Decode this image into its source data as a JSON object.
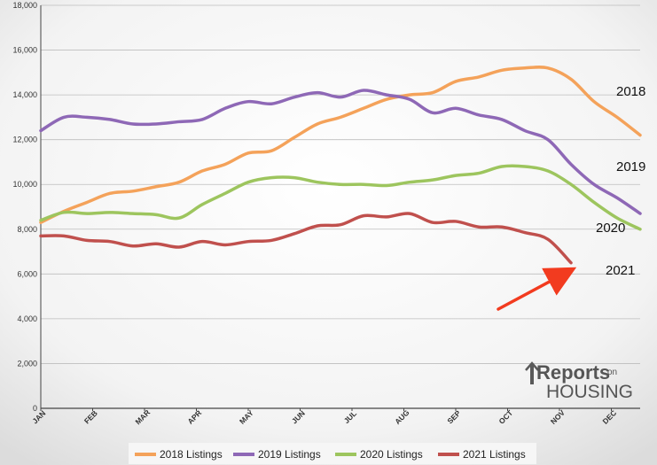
{
  "chart_data": {
    "type": "line",
    "title": "",
    "xlabel": "",
    "ylabel": "",
    "ylim": [
      0,
      18000
    ],
    "y_ticks": [
      "0",
      "2,000",
      "4,000",
      "6,000",
      "8,000",
      "10,000",
      "12,000",
      "14,000",
      "16,000",
      "18,000"
    ],
    "x_tick_labels": [
      "JAN",
      "FEB",
      "MAR",
      "APR",
      "MAY",
      "JUN",
      "JUL",
      "AUG",
      "SEP",
      "OCT",
      "NOV",
      "DEC"
    ],
    "x_tick_weeks": [
      1,
      5.5,
      10,
      14.5,
      19,
      23.5,
      28,
      32.5,
      37,
      41.5,
      46,
      50.5
    ],
    "x_domain_weeks": [
      1,
      53
    ],
    "grid": true,
    "legend_position": "bottom",
    "series": [
      {
        "name": "2018 Listings",
        "end_label": "2018",
        "color": "#F4A25A",
        "x": [
          1,
          3,
          5,
          7,
          9,
          11,
          13,
          15,
          17,
          19,
          21,
          23,
          25,
          27,
          29,
          31,
          33,
          35,
          37,
          39,
          41,
          43,
          45,
          47,
          49,
          51,
          53
        ],
        "values": [
          8300,
          8800,
          9200,
          9600,
          9700,
          9900,
          10100,
          10600,
          10900,
          11400,
          11500,
          12100,
          12700,
          13000,
          13400,
          13800,
          14000,
          14100,
          14600,
          14800,
          15100,
          15200,
          15200,
          14700,
          13700,
          13000,
          12200
        ]
      },
      {
        "name": "2019 Listings",
        "end_label": "2019",
        "color": "#8E68B6",
        "x": [
          1,
          3,
          5,
          7,
          9,
          11,
          13,
          15,
          17,
          19,
          21,
          23,
          25,
          27,
          29,
          31,
          33,
          35,
          37,
          39,
          41,
          43,
          45,
          47,
          49,
          51,
          53
        ],
        "values": [
          12400,
          13000,
          13000,
          12900,
          12700,
          12700,
          12800,
          12900,
          13400,
          13700,
          13600,
          13900,
          14100,
          13900,
          14200,
          14000,
          13800,
          13200,
          13400,
          13100,
          12900,
          12400,
          12000,
          10900,
          10000,
          9400,
          8700
        ]
      },
      {
        "name": "2020 Listings",
        "end_label": "2020",
        "color": "#9DC55E",
        "x": [
          1,
          3,
          5,
          7,
          9,
          11,
          13,
          15,
          17,
          19,
          21,
          23,
          25,
          27,
          29,
          31,
          33,
          35,
          37,
          39,
          41,
          43,
          45,
          47,
          49,
          51,
          53
        ],
        "values": [
          8400,
          8750,
          8700,
          8750,
          8700,
          8650,
          8500,
          9100,
          9600,
          10100,
          10300,
          10300,
          10100,
          10000,
          10000,
          9950,
          10100,
          10200,
          10400,
          10500,
          10800,
          10800,
          10600,
          10000,
          9200,
          8500,
          8000
        ]
      },
      {
        "name": "2021 Listings",
        "end_label": "2021",
        "color": "#C0504D",
        "x": [
          1,
          3,
          5,
          7,
          9,
          11,
          13,
          15,
          17,
          19,
          21,
          23,
          25,
          27,
          29,
          31,
          33,
          35,
          37,
          39,
          41,
          43,
          45,
          47
        ],
        "values": [
          7700,
          7700,
          7500,
          7450,
          7250,
          7350,
          7200,
          7450,
          7300,
          7450,
          7500,
          7800,
          8150,
          8200,
          8600,
          8550,
          8700,
          8300,
          8350,
          8100,
          8100,
          7850,
          7550,
          6500
        ]
      }
    ]
  },
  "annotations": {
    "arrow_color": "#F23B1F"
  },
  "logo": {
    "line1_big": "Reports",
    "line1_small": "on",
    "line2": "HOUSING",
    "color": "#5A5A5A"
  }
}
